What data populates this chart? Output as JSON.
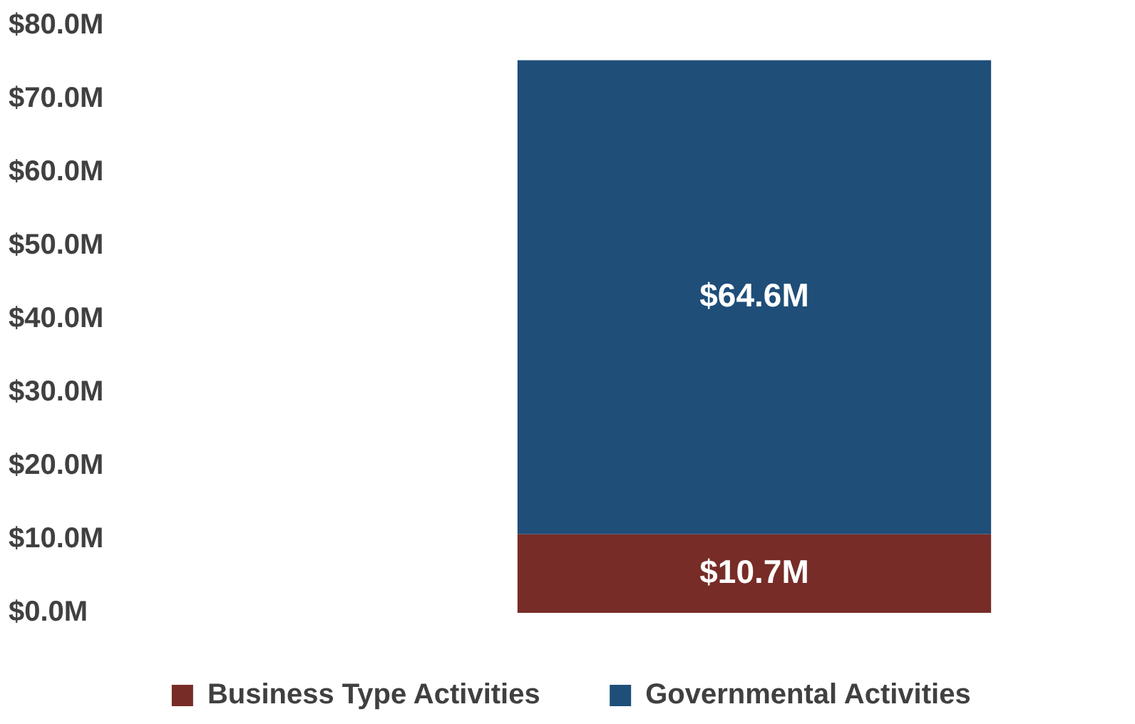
{
  "chart_data": {
    "type": "bar",
    "stacked": true,
    "categories": [
      null
    ],
    "series": [
      {
        "name": "Business Type Activities",
        "color": "#772c27",
        "values": [
          10.7
        ],
        "value_labels": [
          "$10.7M"
        ]
      },
      {
        "name": "Governmental Activities",
        "color": "#1f4e79",
        "values": [
          64.6
        ],
        "value_labels": [
          "$64.6M"
        ]
      }
    ],
    "ylim": [
      0,
      80
    ],
    "yticks": [
      {
        "value": 0,
        "label": "$0.0M"
      },
      {
        "value": 10,
        "label": "$10.0M"
      },
      {
        "value": 20,
        "label": "$20.0M"
      },
      {
        "value": 30,
        "label": "$30.0M"
      },
      {
        "value": 40,
        "label": "$40.0M"
      },
      {
        "value": 50,
        "label": "$50.0M"
      },
      {
        "value": 60,
        "label": "$60.0M"
      },
      {
        "value": 70,
        "label": "$70.0M"
      },
      {
        "value": 80,
        "label": "$80.0M"
      }
    ],
    "grid": false,
    "legend": "bottom",
    "tick_labels": "y"
  }
}
